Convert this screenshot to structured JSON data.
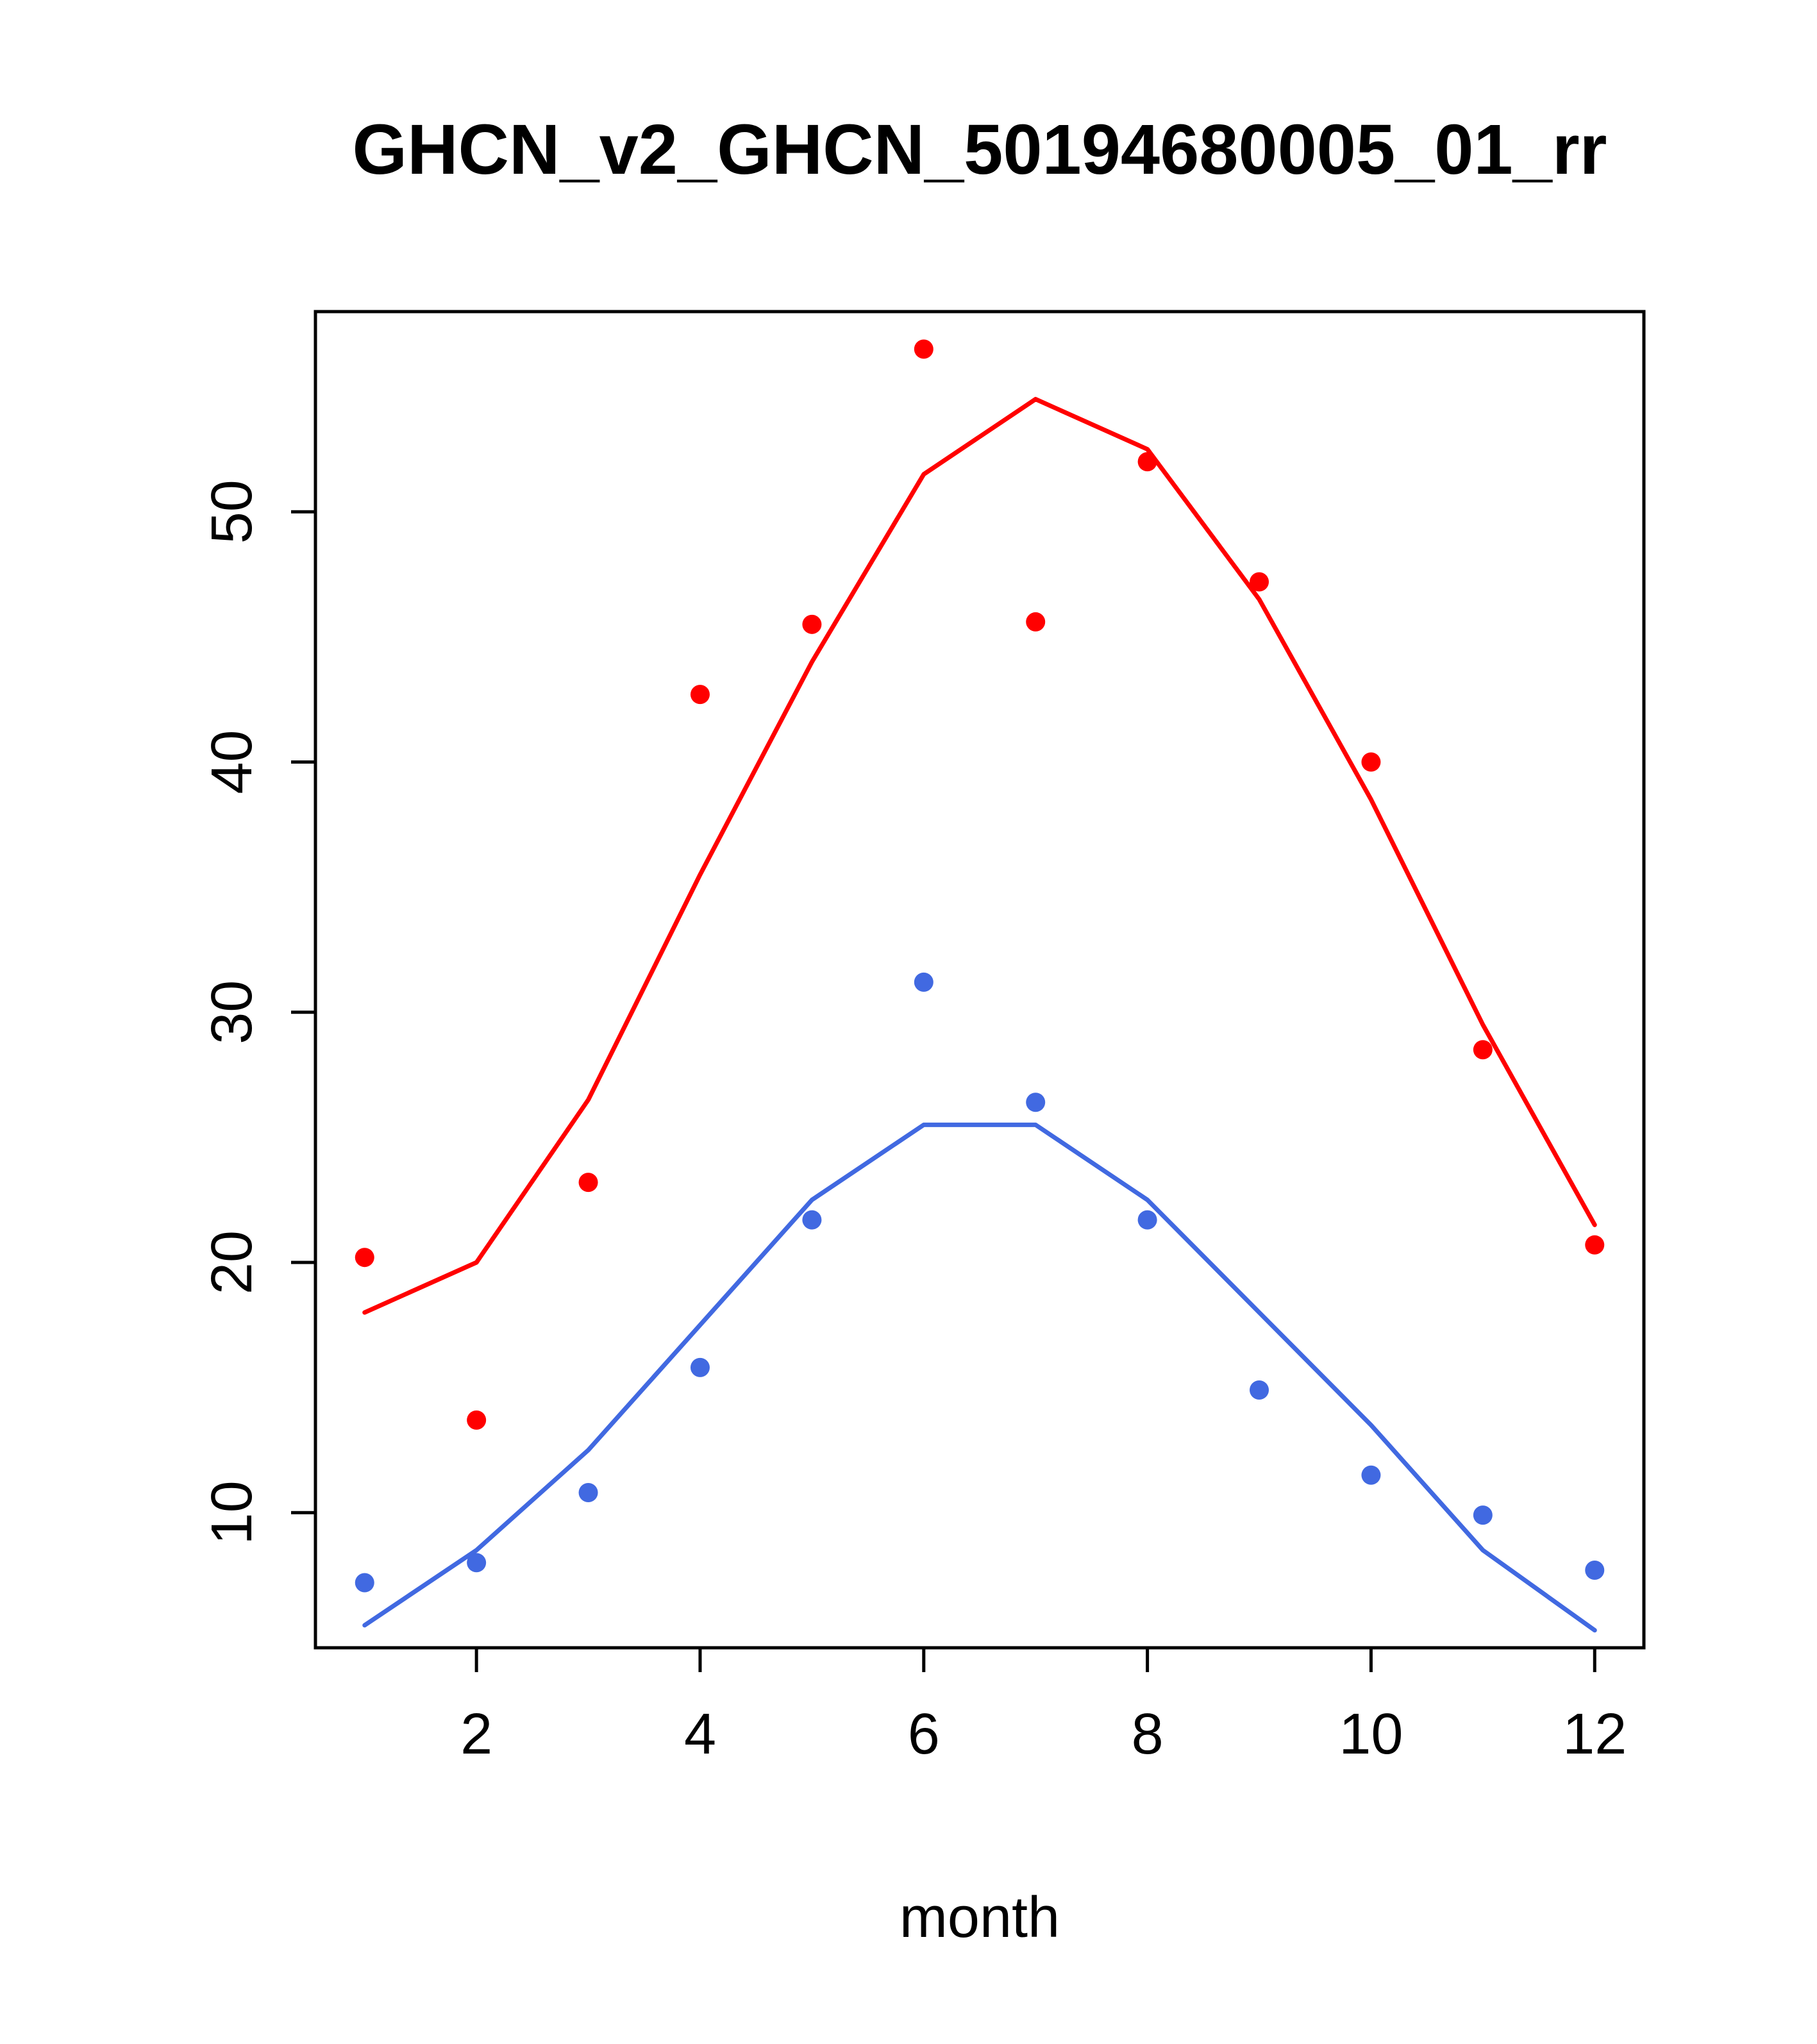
{
  "chart_data": {
    "type": "scatter",
    "title": "GHCN_v2_GHCN_50194680005_01_rr",
    "xlabel": "month",
    "ylabel": "",
    "x": [
      1,
      2,
      3,
      4,
      5,
      6,
      7,
      8,
      9,
      10,
      11,
      12
    ],
    "x_ticks": [
      2,
      4,
      6,
      8,
      10,
      12
    ],
    "y_ticks": [
      10,
      20,
      30,
      40,
      50
    ],
    "xlim": [
      0.56,
      12.44
    ],
    "ylim": [
      4.6,
      58
    ],
    "grid": false,
    "legend": "none",
    "colors": {
      "series_red": "#ff0000",
      "series_blue": "#4169e1",
      "axis": "#000000"
    },
    "series": [
      {
        "name": "red-points",
        "type": "scatter",
        "color": "#ff0000",
        "values": [
          20.2,
          13.7,
          23.2,
          42.7,
          45.5,
          56.5,
          45.6,
          52.0,
          47.2,
          40.0,
          28.5,
          20.7
        ]
      },
      {
        "name": "red-line",
        "type": "line",
        "color": "#ff0000",
        "values": [
          18.0,
          20.0,
          26.5,
          35.5,
          44.0,
          51.5,
          54.5,
          52.5,
          46.5,
          38.5,
          29.5,
          21.5
        ]
      },
      {
        "name": "blue-points",
        "type": "scatter",
        "color": "#4169e1",
        "values": [
          7.2,
          8.0,
          10.8,
          15.8,
          21.7,
          31.2,
          26.4,
          21.7,
          14.9,
          11.5,
          9.9,
          7.7
        ]
      },
      {
        "name": "blue-line",
        "type": "line",
        "color": "#4169e1",
        "values": [
          5.5,
          8.5,
          12.5,
          17.5,
          22.5,
          25.5,
          25.5,
          22.5,
          18.0,
          13.5,
          8.5,
          5.3
        ]
      }
    ]
  }
}
